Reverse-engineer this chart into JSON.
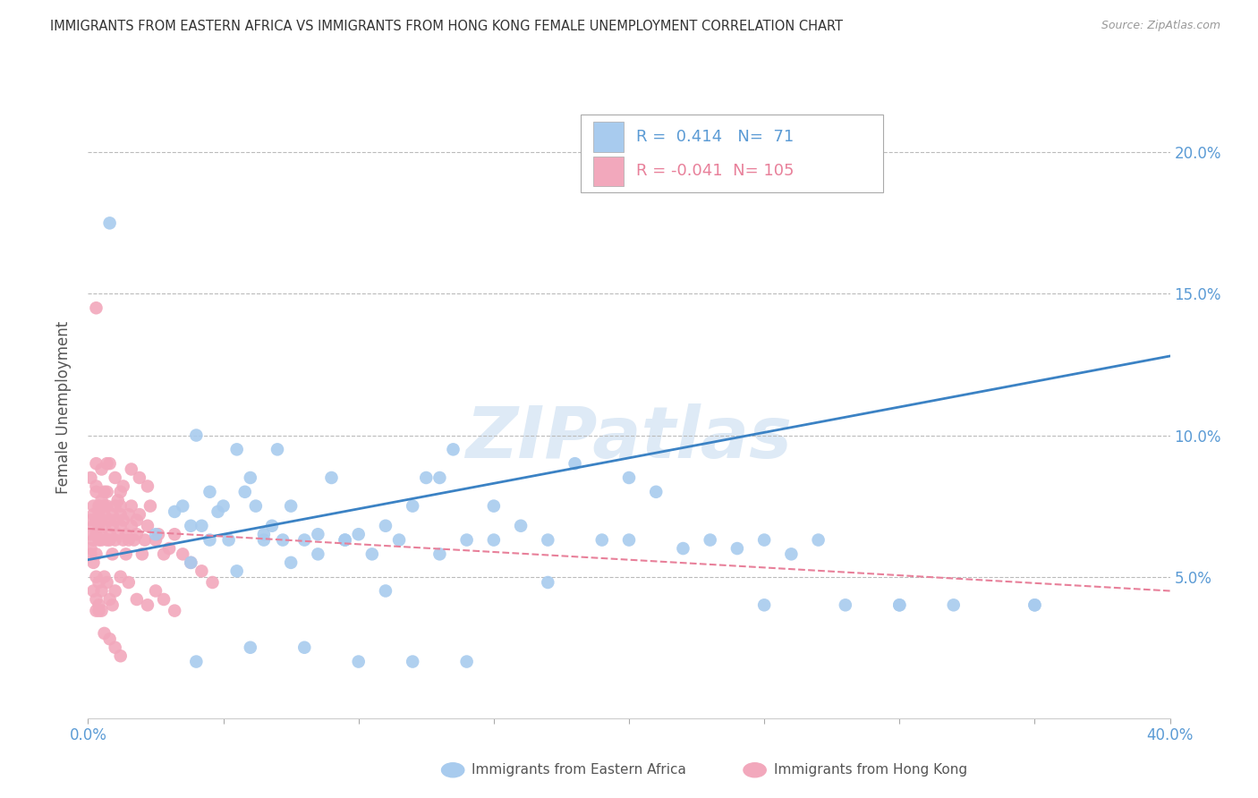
{
  "title": "IMMIGRANTS FROM EASTERN AFRICA VS IMMIGRANTS FROM HONG KONG FEMALE UNEMPLOYMENT CORRELATION CHART",
  "source": "Source: ZipAtlas.com",
  "ylabel": "Female Unemployment",
  "xlim": [
    0.0,
    0.4
  ],
  "ylim": [
    0.0,
    0.22
  ],
  "legend_blue_r": "0.414",
  "legend_blue_n": "71",
  "legend_pink_r": "-0.041",
  "legend_pink_n": "105",
  "series_blue_label": "Immigrants from Eastern Africa",
  "series_pink_label": "Immigrants from Hong Kong",
  "blue_color": "#A8CBEE",
  "pink_color": "#F2A8BC",
  "blue_line_color": "#3B82C4",
  "pink_line_color": "#E8809A",
  "ytick_color": "#5B9BD5",
  "xtick_color": "#5B9BD5",
  "watermark": "ZIPatlas",
  "blue_scatter_x": [
    0.008,
    0.025,
    0.032,
    0.035,
    0.038,
    0.04,
    0.042,
    0.045,
    0.048,
    0.05,
    0.052,
    0.055,
    0.058,
    0.06,
    0.062,
    0.065,
    0.068,
    0.07,
    0.072,
    0.075,
    0.08,
    0.085,
    0.09,
    0.095,
    0.1,
    0.105,
    0.11,
    0.115,
    0.12,
    0.125,
    0.13,
    0.135,
    0.14,
    0.15,
    0.16,
    0.17,
    0.18,
    0.19,
    0.2,
    0.21,
    0.22,
    0.23,
    0.24,
    0.25,
    0.26,
    0.27,
    0.28,
    0.3,
    0.32,
    0.35,
    0.038,
    0.045,
    0.055,
    0.065,
    0.075,
    0.085,
    0.095,
    0.11,
    0.13,
    0.15,
    0.17,
    0.2,
    0.25,
    0.3,
    0.35,
    0.04,
    0.06,
    0.08,
    0.1,
    0.12,
    0.14
  ],
  "blue_scatter_y": [
    0.175,
    0.065,
    0.073,
    0.075,
    0.068,
    0.1,
    0.068,
    0.08,
    0.073,
    0.075,
    0.063,
    0.095,
    0.08,
    0.085,
    0.075,
    0.065,
    0.068,
    0.095,
    0.063,
    0.075,
    0.063,
    0.065,
    0.085,
    0.063,
    0.065,
    0.058,
    0.068,
    0.063,
    0.075,
    0.085,
    0.085,
    0.095,
    0.063,
    0.075,
    0.068,
    0.063,
    0.09,
    0.063,
    0.085,
    0.08,
    0.06,
    0.063,
    0.06,
    0.063,
    0.058,
    0.063,
    0.04,
    0.04,
    0.04,
    0.04,
    0.055,
    0.063,
    0.052,
    0.063,
    0.055,
    0.058,
    0.063,
    0.045,
    0.058,
    0.063,
    0.048,
    0.063,
    0.04,
    0.04,
    0.04,
    0.02,
    0.025,
    0.025,
    0.02,
    0.02,
    0.02
  ],
  "pink_scatter_x": [
    0.001,
    0.001,
    0.001,
    0.002,
    0.002,
    0.002,
    0.002,
    0.003,
    0.003,
    0.003,
    0.003,
    0.004,
    0.004,
    0.004,
    0.004,
    0.005,
    0.005,
    0.005,
    0.005,
    0.006,
    0.006,
    0.006,
    0.006,
    0.007,
    0.007,
    0.007,
    0.008,
    0.008,
    0.008,
    0.009,
    0.009,
    0.009,
    0.01,
    0.01,
    0.01,
    0.011,
    0.011,
    0.012,
    0.012,
    0.012,
    0.013,
    0.013,
    0.014,
    0.014,
    0.015,
    0.015,
    0.016,
    0.016,
    0.017,
    0.018,
    0.018,
    0.019,
    0.02,
    0.021,
    0.022,
    0.023,
    0.025,
    0.026,
    0.028,
    0.03,
    0.032,
    0.035,
    0.038,
    0.042,
    0.046,
    0.001,
    0.002,
    0.003,
    0.004,
    0.005,
    0.006,
    0.007,
    0.008,
    0.009,
    0.01,
    0.012,
    0.015,
    0.018,
    0.022,
    0.025,
    0.028,
    0.032,
    0.001,
    0.003,
    0.005,
    0.007,
    0.01,
    0.013,
    0.016,
    0.019,
    0.022,
    0.003,
    0.003,
    0.008,
    0.012,
    0.002,
    0.003,
    0.004,
    0.005,
    0.004,
    0.003,
    0.006,
    0.008,
    0.01,
    0.012
  ],
  "pink_scatter_y": [
    0.065,
    0.07,
    0.058,
    0.075,
    0.068,
    0.063,
    0.072,
    0.058,
    0.065,
    0.08,
    0.07,
    0.075,
    0.063,
    0.072,
    0.068,
    0.077,
    0.063,
    0.07,
    0.065,
    0.075,
    0.08,
    0.072,
    0.068,
    0.063,
    0.075,
    0.08,
    0.07,
    0.065,
    0.063,
    0.072,
    0.058,
    0.068,
    0.075,
    0.063,
    0.07,
    0.077,
    0.065,
    0.072,
    0.068,
    0.075,
    0.063,
    0.07,
    0.065,
    0.058,
    0.063,
    0.072,
    0.068,
    0.075,
    0.063,
    0.07,
    0.065,
    0.072,
    0.058,
    0.063,
    0.068,
    0.075,
    0.063,
    0.065,
    0.058,
    0.06,
    0.065,
    0.058,
    0.055,
    0.052,
    0.048,
    0.06,
    0.055,
    0.05,
    0.048,
    0.045,
    0.05,
    0.048,
    0.042,
    0.04,
    0.045,
    0.05,
    0.048,
    0.042,
    0.04,
    0.045,
    0.042,
    0.038,
    0.085,
    0.082,
    0.088,
    0.09,
    0.085,
    0.082,
    0.088,
    0.085,
    0.082,
    0.09,
    0.145,
    0.09,
    0.08,
    0.045,
    0.042,
    0.04,
    0.038,
    0.038,
    0.038,
    0.03,
    0.028,
    0.025,
    0.022
  ],
  "blue_trendline_x": [
    0.0,
    0.4
  ],
  "blue_trendline_y": [
    0.056,
    0.128
  ],
  "pink_trendline_x": [
    0.0,
    0.4
  ],
  "pink_trendline_y": [
    0.067,
    0.045
  ]
}
